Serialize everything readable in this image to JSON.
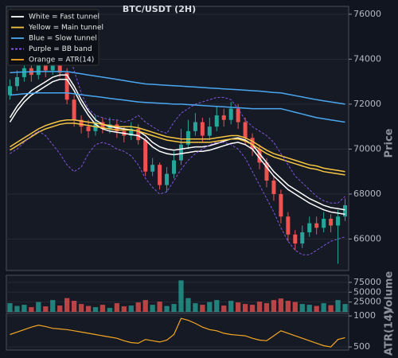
{
  "chart_data": [
    {
      "type": "candlestick",
      "title": "BTC/USDT (2H)",
      "y_label": "Price",
      "ylim": [
        64600,
        76350
      ],
      "yticks": [
        66000,
        68000,
        70000,
        72000,
        74000,
        76000
      ],
      "grid": true,
      "up_color": "#26a69a",
      "down_color": "#ef5350",
      "open": [
        72400,
        72800,
        73200,
        73600,
        73300,
        73800,
        73500,
        73900,
        73400,
        72200,
        71300,
        71000,
        70800,
        71200,
        70900,
        71100,
        70800,
        70600,
        70900,
        70400,
        69000,
        69300,
        68400,
        68900,
        69500,
        70200,
        70800,
        71200,
        70600,
        71000,
        71500,
        71300,
        71800,
        71200,
        70500,
        70000,
        69400,
        68600,
        68000,
        67000,
        66200,
        65800,
        66300,
        66700,
        66500,
        66900,
        66600,
        67000
      ],
      "high": [
        73100,
        73500,
        73900,
        73800,
        74100,
        74000,
        74200,
        74100,
        73600,
        72400,
        71500,
        71300,
        71500,
        71400,
        71400,
        71300,
        71000,
        71200,
        71100,
        70500,
        69600,
        69400,
        69200,
        69900,
        70900,
        71300,
        71600,
        71400,
        71400,
        71900,
        71800,
        72100,
        72000,
        71400,
        70700,
        70200,
        69600,
        68800,
        68200,
        67200,
        66400,
        66600,
        67000,
        67000,
        67200,
        67100,
        67300,
        67800
      ],
      "low": [
        72200,
        72600,
        73000,
        73000,
        73100,
        73200,
        73300,
        73200,
        72000,
        71000,
        70700,
        70500,
        70600,
        70700,
        70700,
        70500,
        70300,
        70400,
        70200,
        68800,
        68800,
        68200,
        68100,
        68700,
        69300,
        70000,
        70600,
        70300,
        70400,
        70800,
        71000,
        71100,
        70900,
        70200,
        69700,
        69100,
        68300,
        67700,
        66700,
        65900,
        65500,
        65600,
        66100,
        66200,
        66300,
        66300,
        64900,
        66800
      ],
      "close": [
        72800,
        73200,
        73600,
        73300,
        73800,
        73500,
        73900,
        73400,
        72200,
        71300,
        71000,
        70800,
        71200,
        70900,
        71100,
        70800,
        70600,
        70900,
        70400,
        69000,
        69300,
        68400,
        68900,
        69500,
        70200,
        70800,
        71200,
        70600,
        71000,
        71500,
        71300,
        71800,
        71200,
        70500,
        70000,
        69400,
        68600,
        68000,
        67000,
        66200,
        65800,
        66300,
        66700,
        66500,
        66900,
        66600,
        67000,
        67500
      ],
      "lines": [
        {
          "color": "#ffffff",
          "dashed": false,
          "values": [
            71400,
            71900,
            72300,
            72600,
            72800,
            73000,
            73200,
            73300,
            73300,
            72800,
            72200,
            71700,
            71300,
            71100,
            71000,
            70950,
            70900,
            70850,
            70800,
            70600,
            70300,
            70100,
            70000,
            69950,
            70000,
            70050,
            70100,
            70100,
            70150,
            70250,
            70350,
            70450,
            70500,
            70400,
            70200,
            69800,
            69400,
            69000,
            68700,
            68400,
            68200,
            68000,
            67800,
            67650,
            67500,
            67400,
            67350,
            67300
          ]
        },
        {
          "color": "#ffffff",
          "dashed": false,
          "values": [
            71200,
            71700,
            72100,
            72400,
            72600,
            72800,
            73000,
            73100,
            73100,
            72600,
            72000,
            71500,
            71100,
            70900,
            70800,
            70750,
            70700,
            70650,
            70600,
            70400,
            70100,
            69900,
            69800,
            69750,
            69800,
            69850,
            69900,
            69900,
            69950,
            70050,
            70150,
            70250,
            70300,
            70200,
            70000,
            69600,
            69200,
            68800,
            68500,
            68200,
            68000,
            67800,
            67600,
            67450,
            67300,
            67200,
            67150,
            67100
          ]
        },
        {
          "color": "#f5c542",
          "dashed": false,
          "values": [
            70100,
            70300,
            70500,
            70700,
            70900,
            71050,
            71150,
            71250,
            71300,
            71300,
            71250,
            71200,
            71150,
            71100,
            71050,
            71000,
            71000,
            71000,
            70950,
            70850,
            70750,
            70650,
            70550,
            70500,
            70450,
            70450,
            70450,
            70450,
            70450,
            70500,
            70550,
            70600,
            70600,
            70500,
            70350,
            70150,
            69950,
            69800,
            69700,
            69600,
            69500,
            69400,
            69300,
            69250,
            69150,
            69100,
            69050,
            69000
          ]
        },
        {
          "color": "#f5c542",
          "dashed": false,
          "values": [
            69950,
            70150,
            70350,
            70550,
            70750,
            70900,
            71000,
            71100,
            71150,
            71150,
            71100,
            71050,
            71000,
            70950,
            70900,
            70850,
            70850,
            70850,
            70800,
            70700,
            70600,
            70500,
            70400,
            70350,
            70300,
            70300,
            70300,
            70300,
            70300,
            70350,
            70400,
            70450,
            70450,
            70350,
            70200,
            70000,
            69800,
            69650,
            69550,
            69450,
            69350,
            69250,
            69150,
            69100,
            69000,
            68950,
            68900,
            68850
          ]
        },
        {
          "color": "#4aa8f0",
          "dashed": false,
          "values": [
            73400,
            73420,
            73430,
            73440,
            73450,
            73450,
            73450,
            73450,
            73450,
            73400,
            73350,
            73300,
            73250,
            73200,
            73150,
            73100,
            73050,
            73000,
            72950,
            72900,
            72880,
            72860,
            72840,
            72820,
            72800,
            72780,
            72760,
            72740,
            72720,
            72700,
            72680,
            72660,
            72640,
            72620,
            72600,
            72580,
            72550,
            72520,
            72500,
            72440,
            72380,
            72320,
            72260,
            72200,
            72150,
            72100,
            72050,
            72000
          ]
        },
        {
          "color": "#4aa8f0",
          "dashed": false,
          "values": [
            72400,
            72430,
            72460,
            72480,
            72500,
            72500,
            72500,
            72500,
            72500,
            72460,
            72420,
            72380,
            72340,
            72300,
            72260,
            72220,
            72180,
            72140,
            72100,
            72080,
            72060,
            72040,
            72020,
            72000,
            72000,
            71980,
            71960,
            71940,
            71920,
            71900,
            71880,
            71860,
            71840,
            71820,
            71800,
            71800,
            71800,
            71800,
            71800,
            71720,
            71640,
            71560,
            71480,
            71400,
            71350,
            71300,
            71250,
            71200
          ]
        },
        {
          "color": "#8a5cf0",
          "dashed": true,
          "values": [
            74500,
            75200,
            75500,
            75300,
            74800,
            74600,
            74800,
            75000,
            74500,
            73500,
            72500,
            71800,
            71500,
            71400,
            71300,
            71300,
            71200,
            71300,
            71500,
            71200,
            71000,
            70800,
            70700,
            71200,
            71600,
            71800,
            72000,
            72100,
            72200,
            72300,
            72300,
            72200,
            71800,
            71300,
            71000,
            70800,
            70600,
            70300,
            69800,
            69300,
            68800,
            68500,
            68200,
            67900,
            67700,
            67600,
            67600,
            67900
          ]
        },
        {
          "color": "#8a5cf0",
          "dashed": true,
          "values": [
            69800,
            70000,
            70300,
            70600,
            70800,
            70600,
            70200,
            69800,
            69300,
            69000,
            69200,
            69800,
            70200,
            70300,
            70200,
            70000,
            69900,
            69700,
            69300,
            68700,
            68300,
            68000,
            68100,
            68600,
            69100,
            69500,
            69800,
            70000,
            70200,
            70300,
            70300,
            70200,
            70000,
            69600,
            69000,
            68400,
            67800,
            67200,
            66500,
            65900,
            65500,
            65300,
            65300,
            65500,
            65700,
            65900,
            66000,
            66100
          ]
        }
      ],
      "legend": [
        {
          "label": "White = Fast tunnel",
          "color": "#ffffff",
          "dashed": false
        },
        {
          "label": "Yellow = Main tunnel",
          "color": "#f5c542",
          "dashed": false
        },
        {
          "label": "Blue = Slow tunnel",
          "color": "#4aa8f0",
          "dashed": false
        },
        {
          "label": "Purple = BB band",
          "color": "#8a5cf0",
          "dashed": true
        },
        {
          "label": "Orange = ATR(14)",
          "color": "#f5a623",
          "dashed": false
        }
      ]
    },
    {
      "type": "bar",
      "y_label": "Volume",
      "ylim": [
        0,
        93000
      ],
      "yticks": [
        25000,
        50000,
        75000
      ],
      "grid": true,
      "values": [
        22000,
        15000,
        18000,
        12000,
        25000,
        14000,
        30000,
        16000,
        35000,
        28000,
        20000,
        15000,
        12000,
        18000,
        10000,
        22000,
        14000,
        16000,
        24000,
        30000,
        18000,
        26000,
        15000,
        20000,
        80000,
        35000,
        22000,
        18000,
        25000,
        30000,
        16000,
        28000,
        24000,
        20000,
        18000,
        26000,
        22000,
        30000,
        34000,
        28000,
        25000,
        20000,
        18000,
        15000,
        22000,
        17000,
        30000,
        20000
      ]
    },
    {
      "type": "line",
      "y_label": "ATR(14)",
      "ylim": [
        450,
        1040
      ],
      "yticks": [
        500,
        1000
      ],
      "grid": true,
      "color": "#f5a623",
      "values": [
        700,
        740,
        780,
        820,
        850,
        830,
        800,
        790,
        780,
        760,
        740,
        720,
        700,
        680,
        660,
        640,
        600,
        570,
        560,
        620,
        600,
        580,
        610,
        700,
        960,
        930,
        880,
        820,
        780,
        760,
        720,
        700,
        690,
        680,
        640,
        610,
        600,
        680,
        760,
        720,
        680,
        640,
        600,
        560,
        520,
        500,
        620,
        650
      ]
    }
  ]
}
